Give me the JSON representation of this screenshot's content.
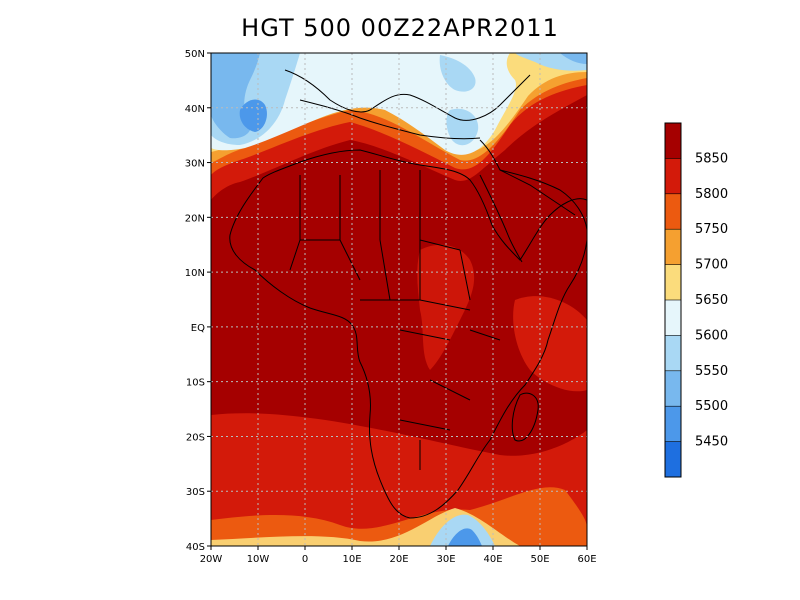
{
  "title": "HGT 500 00Z22APR2011",
  "map": {
    "lat_ticks": [
      "50N",
      "40N",
      "30N",
      "20N",
      "10N",
      "EQ",
      "10S",
      "20S",
      "30S",
      "40S"
    ],
    "lon_ticks": [
      "20W",
      "10W",
      "0",
      "10E",
      "20E",
      "30E",
      "40E",
      "50E",
      "60E"
    ],
    "lat_range": [
      -40,
      50
    ],
    "lon_range": [
      -20,
      60
    ],
    "grid": "dotted"
  },
  "colorbar": {
    "labels": [
      "5850",
      "5800",
      "5750",
      "5700",
      "5650",
      "5600",
      "5550",
      "5500",
      "5450"
    ],
    "colors_top_to_bottom": [
      "#a50000",
      "#d31a0a",
      "#ec5a10",
      "#f5a030",
      "#fbdc7c",
      "#e6f6fb",
      "#a9d8f4",
      "#78b8ee",
      "#4c98ea",
      "#1e6fe0"
    ]
  }
}
